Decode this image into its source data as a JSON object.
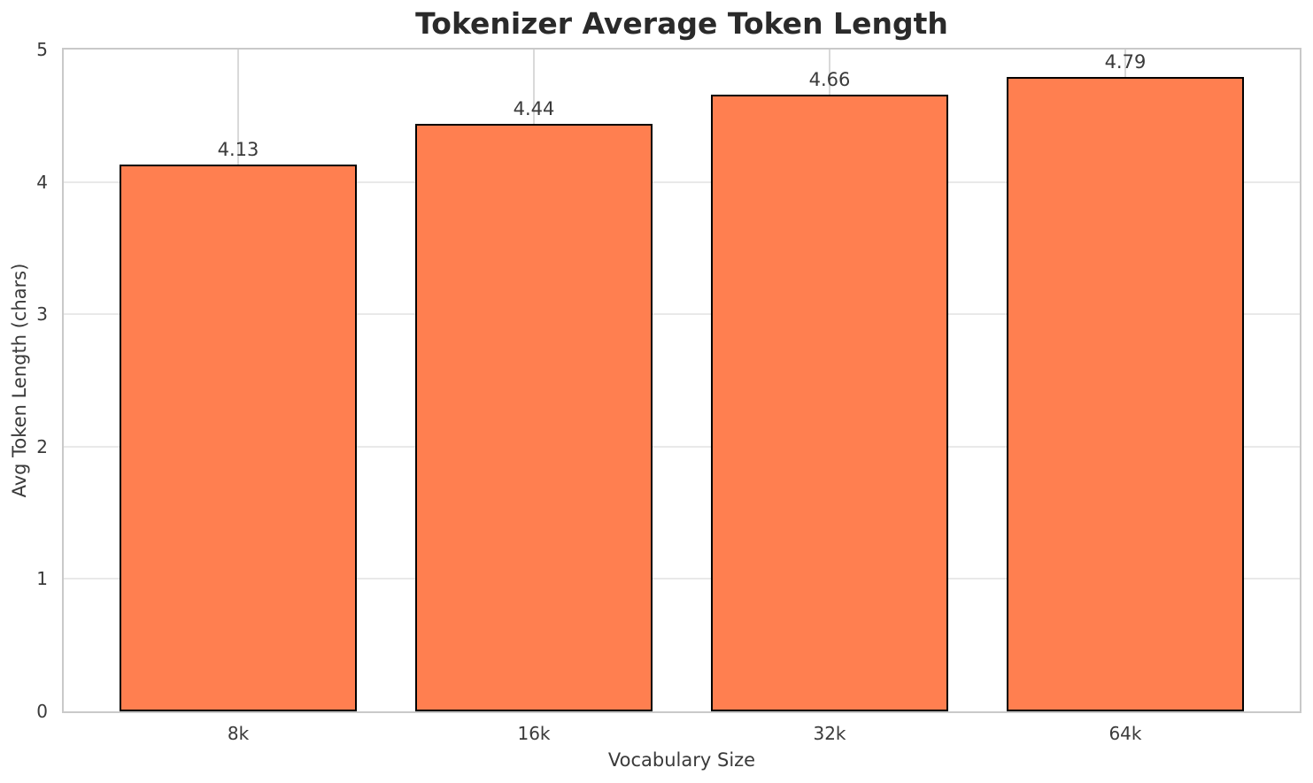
{
  "chart_data": {
    "type": "bar",
    "title": "Tokenizer Average Token Length",
    "xlabel": "Vocabulary Size",
    "ylabel": "Avg Token Length (chars)",
    "categories": [
      "8k",
      "16k",
      "32k",
      "64k"
    ],
    "values": [
      4.13,
      4.44,
      4.66,
      4.79
    ],
    "value_labels": [
      "4.13",
      "4.44",
      "4.66",
      "4.79"
    ],
    "ylim": [
      0,
      5
    ],
    "yticks": [
      0,
      1,
      2,
      3,
      4,
      5
    ],
    "grid": true,
    "legend_position": "none",
    "bar_color": "#ff7f50",
    "bar_edge_color": "#000000",
    "grid_color_horizontal": "#e9e9e9",
    "grid_color_vertical": "#d9d9d9",
    "spine_color": "#c9c9c9",
    "background_color": "#ffffff",
    "title_color": "#2a2a2a",
    "text_color": "#3a3a3a",
    "bar_width_fraction": 0.8,
    "x_margin": 0.05
  }
}
